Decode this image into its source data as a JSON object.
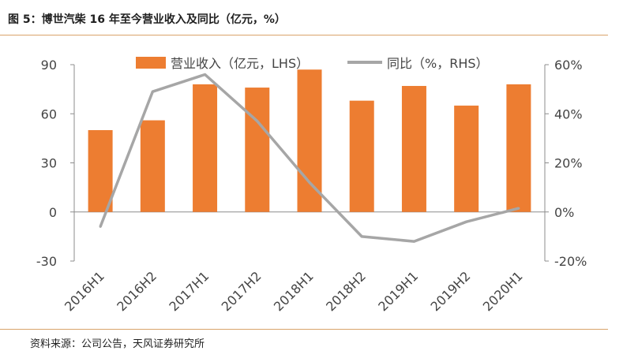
{
  "header": {
    "title": "图 5：博世汽柴 16 年至今营业收入及同比（亿元，%）"
  },
  "footer": {
    "source": "资料来源：公司公告，天风证券研究所"
  },
  "colors": {
    "bar": "#ed7d31",
    "line": "#a6a6a6",
    "axis": "#8c8c8c",
    "rule": "#d9a36a"
  },
  "chart_data": {
    "type": "bar",
    "categories": [
      "2016H1",
      "2016H2",
      "2017H1",
      "2017H2",
      "2018H1",
      "2018H2",
      "2019H1",
      "2019H2",
      "2020H1"
    ],
    "series": [
      {
        "name": "营业收入（亿元，LHS）",
        "type": "bar",
        "axis": "left",
        "values": [
          50,
          56,
          78,
          76,
          87,
          68,
          77,
          65,
          78
        ]
      },
      {
        "name": "同比（%，RHS）",
        "type": "line",
        "axis": "right",
        "values": [
          -6,
          49,
          56,
          37,
          12,
          -10,
          -12,
          -4,
          1.5
        ]
      }
    ],
    "y_left": {
      "lim": [
        -30,
        90
      ],
      "ticks": [
        -30,
        0,
        30,
        60,
        90
      ],
      "tick_labels": [
        "-30",
        "0",
        "30",
        "60",
        "90"
      ]
    },
    "y_right": {
      "lim": [
        -20,
        60
      ],
      "ticks": [
        -20,
        0,
        20,
        40,
        60
      ],
      "tick_labels": [
        "-20%",
        "0%",
        "20%",
        "40%",
        "60%"
      ]
    },
    "grid": false,
    "legend": "top-center"
  }
}
